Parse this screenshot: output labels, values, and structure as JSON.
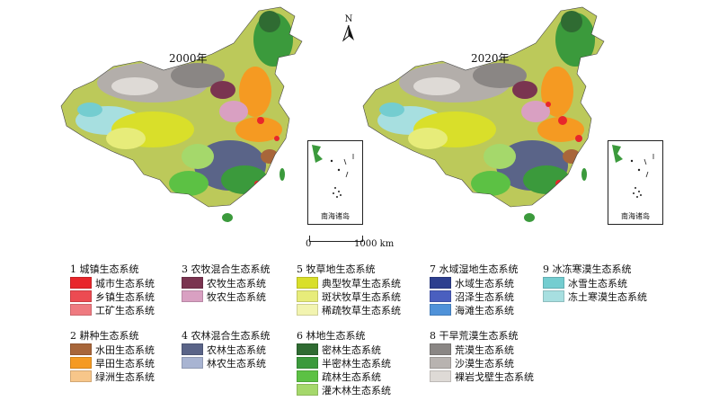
{
  "maps": [
    {
      "year_label": "2000年"
    },
    {
      "year_label": "2020年"
    }
  ],
  "inset_label": "南海诸岛",
  "north_label": "N",
  "scale": {
    "start": "0",
    "end": "1000 km"
  },
  "legend": [
    {
      "title": "1 城镇生态系统",
      "items": [
        {
          "label": "城市生态系统",
          "color": "#e8262b"
        },
        {
          "label": "乡镇生态系统",
          "color": "#ec4b52"
        },
        {
          "label": "工矿生态系统",
          "color": "#ef7a80"
        }
      ]
    },
    {
      "title": "2 耕种生态系统",
      "items": [
        {
          "label": "水田生态系统",
          "color": "#a8663a"
        },
        {
          "label": "旱田生态系统",
          "color": "#f59a22"
        },
        {
          "label": "绿洲生态系统",
          "color": "#f7c68a"
        }
      ]
    },
    {
      "title": "3 农牧混合生态系统",
      "items": [
        {
          "label": "农牧生态系统",
          "color": "#7a3450"
        },
        {
          "label": "牧农生态系统",
          "color": "#d9a0c2"
        }
      ]
    },
    {
      "title": "4 农林混合生态系统",
      "items": [
        {
          "label": "农林生态系统",
          "color": "#5a6488"
        },
        {
          "label": "林农生态系统",
          "color": "#a8b4d2"
        }
      ]
    },
    {
      "title": "5 牧草地生态系统",
      "items": [
        {
          "label": "典型牧草生态系统",
          "color": "#d9df2a"
        },
        {
          "label": "斑状牧草生态系统",
          "color": "#e7ec7a"
        },
        {
          "label": "稀疏牧草生态系统",
          "color": "#f2f4b0"
        }
      ]
    },
    {
      "title": "6 林地生态系统",
      "items": [
        {
          "label": "密林生态系统",
          "color": "#2f6b32"
        },
        {
          "label": "半密林生态系统",
          "color": "#3b9a3c"
        },
        {
          "label": "疏林生态系统",
          "color": "#5cc144"
        },
        {
          "label": "灌木林生态系统",
          "color": "#a5d86b"
        }
      ]
    },
    {
      "title": "7 水域湿地生态系统",
      "items": [
        {
          "label": "水域生态系统",
          "color": "#2d3f8f"
        },
        {
          "label": "沼泽生态系统",
          "color": "#4a5fbf"
        },
        {
          "label": "海滩生态系统",
          "color": "#4f92d9"
        }
      ]
    },
    {
      "title": "8 干旱荒漠生态系统",
      "items": [
        {
          "label": "荒漠生态系统",
          "color": "#8a8684"
        },
        {
          "label": "沙漠生态系统",
          "color": "#b8b3b0"
        },
        {
          "label": "裸岩戈壁生态系统",
          "color": "#dedad6"
        }
      ]
    },
    {
      "title": "9 冰冻寒漠生态系统",
      "items": [
        {
          "label": "冰雪生态系统",
          "color": "#74cdd0"
        },
        {
          "label": "冻土寒漠生态系统",
          "color": "#a7dfe0"
        }
      ]
    }
  ]
}
